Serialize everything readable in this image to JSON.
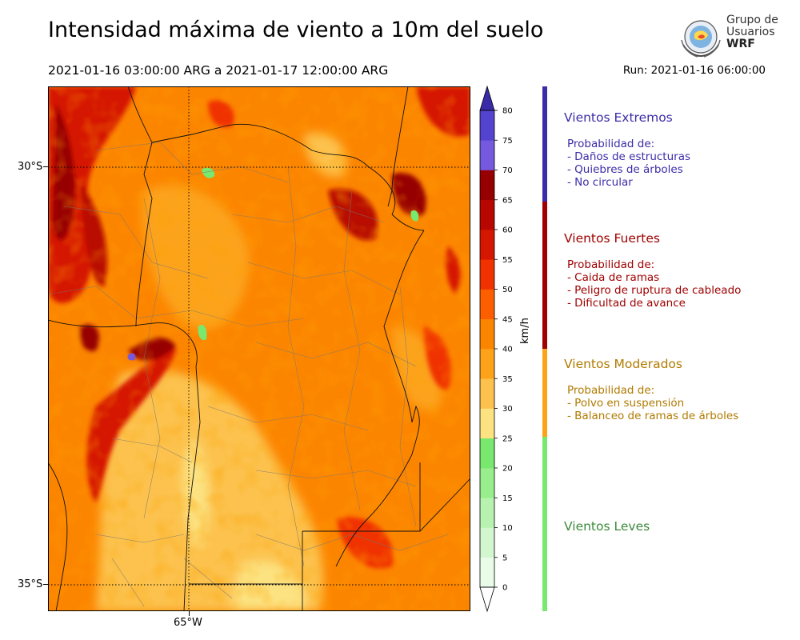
{
  "title": "Intensidad máxima de viento a 10m del suelo",
  "period": "2021-01-16 03:00:00 ARG  a  2021-01-17 12:00:00 ARG",
  "run": "Run: 2021-01-16 06:00:00",
  "logo": {
    "line1": "Grupo de",
    "line2": "Usuarios",
    "line3": "WRF"
  },
  "map": {
    "lat_labels": [
      "30°S",
      "35°S"
    ],
    "lon_labels": [
      "65°W"
    ]
  },
  "colorbar": {
    "unit": "km/h",
    "ticks": [
      "0",
      "5",
      "10",
      "15",
      "20",
      "25",
      "30",
      "35",
      "40",
      "45",
      "50",
      "55",
      "60",
      "65",
      "70",
      "75",
      "80"
    ],
    "colors": [
      "#e8fce8",
      "#d2f7cf",
      "#b7f2b0",
      "#98ee8c",
      "#78e86f",
      "#fce280",
      "#fcc24d",
      "#fca31a",
      "#fc8500",
      "#fc5e00",
      "#f03200",
      "#d51600",
      "#b80700",
      "#970000",
      "#7559df",
      "#5443ce",
      "#3f24b0"
    ],
    "extend_max_color": "#3a2aa8",
    "extend_min_color": "#ffffff"
  },
  "categories": [
    {
      "title": "Vientos Extremos",
      "color": "#3b2ca8",
      "lines": [
        "Probabilidad de:",
        "- Daños de estructuras",
        "- Quiebres de árboles",
        "- No circular"
      ]
    },
    {
      "title": "Vientos Fuertes",
      "color": "#a00000",
      "lines": [
        "Probabilidad de:",
        "- Caida de ramas",
        "- Peligro de ruptura de cableado",
        "- Dificultad de avance"
      ]
    },
    {
      "title": "Vientos Moderados",
      "color": "#b07a00",
      "bar_color": "#fca31a",
      "lines": [
        "Probabilidad de:",
        "- Polvo en suspensión",
        "- Balanceo de ramas de árboles"
      ]
    },
    {
      "title": "Vientos Leves",
      "color": "#3a8a3a",
      "bar_color": "#78e86f",
      "lines": []
    }
  ]
}
